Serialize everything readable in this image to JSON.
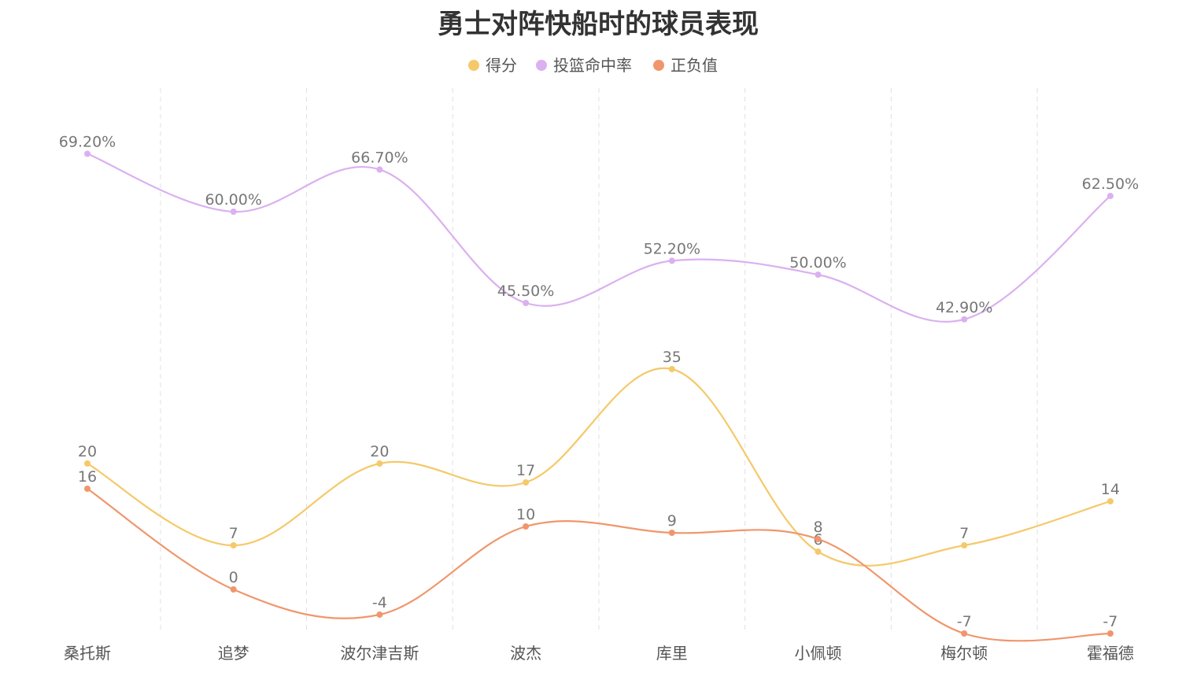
{
  "chart_data": {
    "type": "line",
    "smooth": true,
    "title": "勇士对阵快船时的球员表现",
    "legend_position": "top",
    "grid": {
      "x_dashed_separators": true,
      "y": false
    },
    "categories": [
      "桑托斯",
      "追梦",
      "波尔津吉斯",
      "波杰",
      "库里",
      "小佩顿",
      "梅尔顿",
      "霍福德"
    ],
    "ylim": [
      -7,
      80
    ],
    "series": [
      {
        "name": "得分",
        "color": "#f5c96a",
        "values": [
          20,
          7,
          20,
          17,
          35,
          6,
          7,
          14
        ],
        "labels": [
          "20",
          "7",
          "20",
          "17",
          "35",
          "6",
          "7",
          "14"
        ]
      },
      {
        "name": "投篮命中率",
        "color": "#dbb0f0",
        "values": [
          69.2,
          60.0,
          66.7,
          45.5,
          52.2,
          50.0,
          42.9,
          62.5
        ],
        "labels": [
          "69.20%",
          "60.00%",
          "66.70%",
          "45.50%",
          "52.20%",
          "50.00%",
          "42.90%",
          "62.50%"
        ]
      },
      {
        "name": "正负值",
        "color": "#f0966c",
        "values": [
          16,
          0,
          -4,
          10,
          9,
          8,
          -7,
          -7
        ],
        "labels": [
          "16",
          "0",
          "-4",
          "10",
          "9",
          "8",
          "-7",
          "-7"
        ]
      }
    ]
  }
}
